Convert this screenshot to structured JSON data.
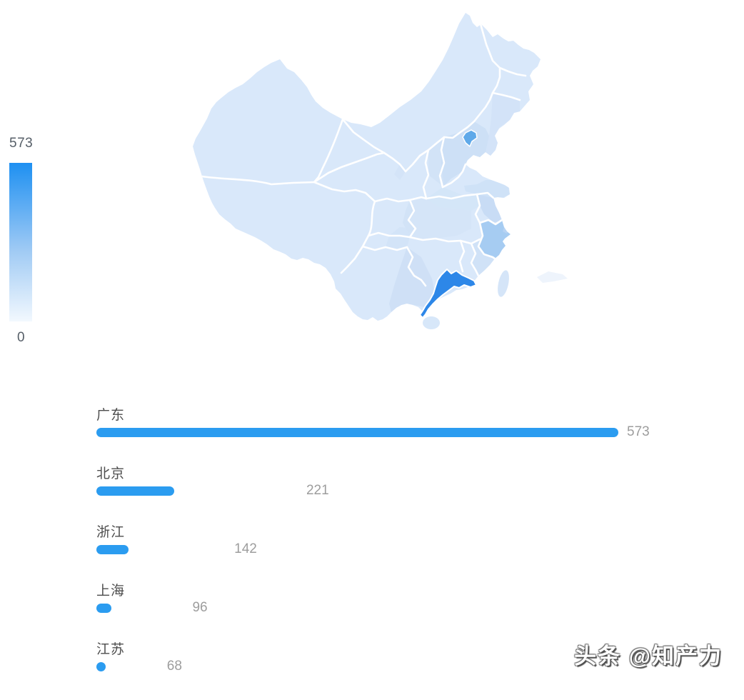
{
  "page": {
    "background": "#ffffff"
  },
  "watermark": {
    "text": "头条 @知产力"
  },
  "legend": {
    "max_label": "573",
    "min_label": "0",
    "color_top": "#1e90f2",
    "color_mid": "#9fcaf4",
    "color_bottom": "#f2f8fe"
  },
  "map": {
    "label": "china-province-choropleth",
    "base_fill": "#d9e8fa",
    "border_color": "#ffffff",
    "regions": [
      {
        "name": "广东",
        "value": 573,
        "fill": "#2d87e8"
      },
      {
        "name": "北京",
        "value": 221,
        "fill": "#5fa9e9"
      },
      {
        "name": "浙江",
        "value": 142,
        "fill": "#a6ccf2"
      },
      {
        "name": "上海",
        "value": 96,
        "fill": "#b7d3f3"
      },
      {
        "name": "江苏",
        "value": 68,
        "fill": "#c8dcf5"
      }
    ]
  },
  "chart_data": {
    "type": "bar",
    "orientation": "horizontal",
    "title": "",
    "categories": [
      "广东",
      "北京",
      "浙江",
      "上海",
      "江苏"
    ],
    "values": [
      573,
      221,
      142,
      96,
      68
    ],
    "xlim": [
      0,
      573
    ],
    "bar_color": "#2b9cf0",
    "label_color": "#4d4d4d",
    "value_color": "#9d9d9d",
    "grid": false,
    "legend_position": "left-of-map"
  }
}
